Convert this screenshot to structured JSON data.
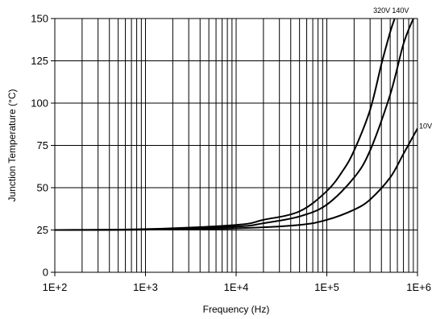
{
  "chart_data": {
    "type": "line",
    "title": "",
    "xlabel": "Frequency (Hz)",
    "ylabel": "Junction Temperature (°C)",
    "x_scale": "log",
    "xlim": [
      100,
      1000000
    ],
    "ylim": [
      0,
      150
    ],
    "x_ticks": [
      100,
      1000,
      10000,
      100000,
      1000000
    ],
    "x_tick_labels": [
      "1E+2",
      "1E+3",
      "1E+4",
      "1E+5",
      "1E+6"
    ],
    "y_ticks": [
      0,
      25,
      50,
      75,
      100,
      125,
      150
    ],
    "y_tick_labels": [
      "0",
      "25",
      "50",
      "75",
      "100",
      "125",
      "150"
    ],
    "grid": true,
    "legend": "none",
    "series": [
      {
        "name": "320V",
        "x": [
          100,
          1000,
          10000,
          20000,
          50000,
          100000,
          150000,
          200000,
          300000,
          400000,
          500000,
          560000
        ],
        "y": [
          25,
          25.5,
          28,
          31,
          36,
          48,
          60,
          72,
          96,
          123,
          142,
          150
        ]
      },
      {
        "name": "140V",
        "x": [
          100,
          1000,
          10000,
          20000,
          50000,
          100000,
          200000,
          300000,
          500000,
          700000,
          900000
        ],
        "y": [
          25,
          25.3,
          27,
          29,
          33,
          40,
          56,
          72,
          105,
          135,
          150
        ]
      },
      {
        "name": "10V",
        "x": [
          100,
          1000,
          10000,
          50000,
          100000,
          200000,
          300000,
          500000,
          700000,
          1000000
        ],
        "y": [
          25,
          25.2,
          26,
          28,
          31,
          37,
          43,
          56,
          70,
          85
        ]
      }
    ]
  }
}
